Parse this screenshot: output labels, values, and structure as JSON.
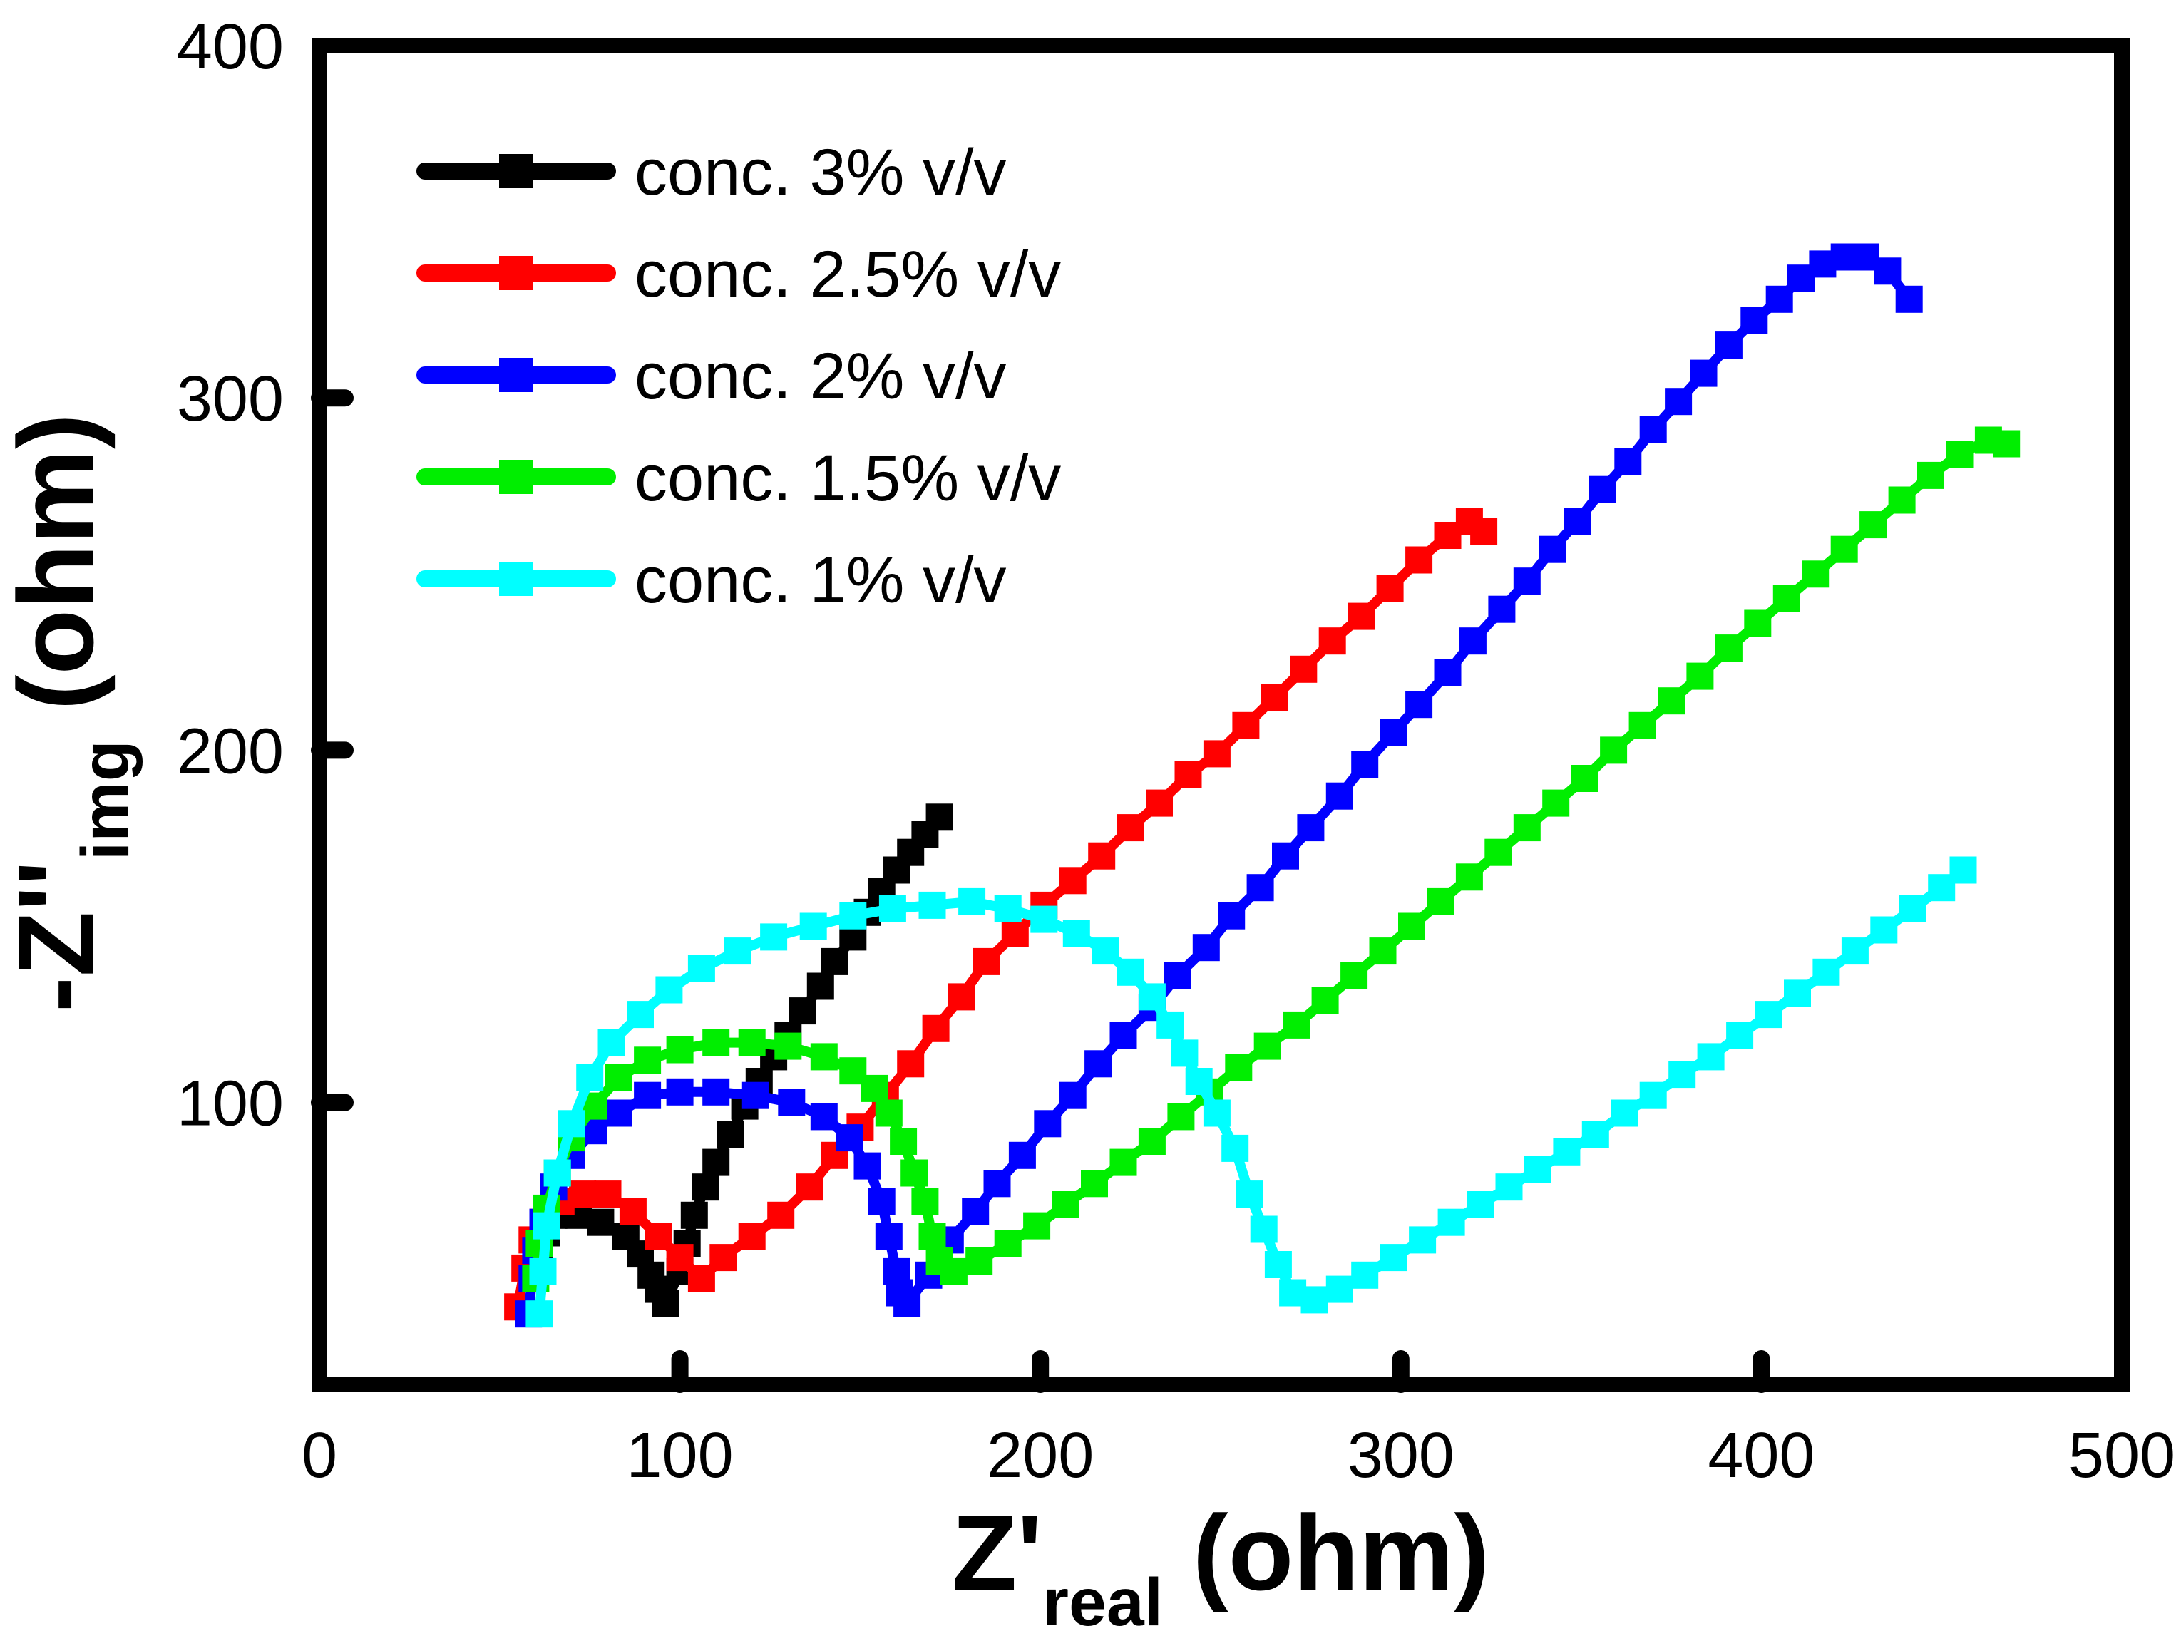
{
  "chart_data": {
    "type": "scatter",
    "title": "",
    "xlabel": {
      "main": "Z'",
      "sub": "real",
      "unit": " (ohm)"
    },
    "ylabel": {
      "prefix": "-",
      "main": "Z''",
      "sub": "img",
      "unit": " (ohm)"
    },
    "xlim": [
      0,
      500
    ],
    "ylim": [
      20,
      400
    ],
    "xticks": [
      0,
      100,
      200,
      300,
      400,
      500
    ],
    "yticks": [
      100,
      200,
      300,
      400
    ],
    "grid": false,
    "legend_position": "top-left",
    "series": [
      {
        "name": "conc. 3% v/v",
        "color": "#000000",
        "points": [
          [
            61,
            54
          ],
          [
            63,
            63
          ],
          [
            65,
            68
          ],
          [
            67,
            70
          ],
          [
            72,
            68
          ],
          [
            78,
            66
          ],
          [
            85,
            62
          ],
          [
            89,
            57
          ],
          [
            92,
            51
          ],
          [
            94,
            47
          ],
          [
            96,
            43
          ],
          [
            100,
            52
          ],
          [
            102,
            60
          ],
          [
            104,
            68
          ],
          [
            107,
            76
          ],
          [
            110,
            83
          ],
          [
            114,
            91
          ],
          [
            118,
            99
          ],
          [
            122,
            106
          ],
          [
            126,
            113
          ],
          [
            130,
            119
          ],
          [
            134,
            126
          ],
          [
            139,
            133
          ],
          [
            143,
            140
          ],
          [
            148,
            147
          ],
          [
            152,
            154
          ],
          [
            156,
            160
          ],
          [
            160,
            166
          ],
          [
            164,
            171
          ],
          [
            168,
            176
          ],
          [
            172,
            181
          ]
        ]
      },
      {
        "name": "conc. 2.5% v/v",
        "color": "#ff0000",
        "points": [
          [
            55,
            42
          ],
          [
            57,
            53
          ],
          [
            59,
            61
          ],
          [
            62,
            66
          ],
          [
            67,
            72
          ],
          [
            73,
            74
          ],
          [
            80,
            74
          ],
          [
            87,
            69
          ],
          [
            94,
            62
          ],
          [
            100,
            56
          ],
          [
            106,
            50
          ],
          [
            112,
            56
          ],
          [
            120,
            62
          ],
          [
            128,
            68
          ],
          [
            136,
            76
          ],
          [
            143,
            85
          ],
          [
            150,
            93
          ],
          [
            157,
            102
          ],
          [
            164,
            111
          ],
          [
            171,
            121
          ],
          [
            178,
            130
          ],
          [
            185,
            140
          ],
          [
            193,
            148
          ],
          [
            201,
            156
          ],
          [
            209,
            163
          ],
          [
            217,
            170
          ],
          [
            225,
            178
          ],
          [
            233,
            185
          ],
          [
            241,
            193
          ],
          [
            249,
            199
          ],
          [
            257,
            207
          ],
          [
            265,
            215
          ],
          [
            273,
            223
          ],
          [
            281,
            231
          ],
          [
            289,
            238
          ],
          [
            297,
            246
          ],
          [
            305,
            254
          ],
          [
            313,
            261
          ],
          [
            319,
            265
          ],
          [
            323,
            262
          ]
        ]
      },
      {
        "name": "conc. 2% v/v",
        "color": "#0000ff",
        "points": [
          [
            58,
            40
          ],
          [
            59,
            50
          ],
          [
            60,
            58
          ],
          [
            62,
            66
          ],
          [
            65,
            76
          ],
          [
            70,
            85
          ],
          [
            76,
            92
          ],
          [
            83,
            97
          ],
          [
            91,
            102
          ],
          [
            100,
            103
          ],
          [
            110,
            103
          ],
          [
            121,
            102
          ],
          [
            131,
            100
          ],
          [
            140,
            96
          ],
          [
            147,
            90
          ],
          [
            152,
            82
          ],
          [
            156,
            72
          ],
          [
            158,
            62
          ],
          [
            160,
            52
          ],
          [
            161,
            46
          ],
          [
            163,
            43
          ],
          [
            169,
            51
          ],
          [
            175,
            61
          ],
          [
            182,
            69
          ],
          [
            188,
            77
          ],
          [
            195,
            85
          ],
          [
            202,
            94
          ],
          [
            209,
            102
          ],
          [
            216,
            111
          ],
          [
            223,
            119
          ],
          [
            231,
            127
          ],
          [
            238,
            136
          ],
          [
            246,
            144
          ],
          [
            253,
            153
          ],
          [
            261,
            161
          ],
          [
            268,
            170
          ],
          [
            275,
            178
          ],
          [
            283,
            187
          ],
          [
            290,
            196
          ],
          [
            298,
            205
          ],
          [
            305,
            213
          ],
          [
            313,
            222
          ],
          [
            320,
            231
          ],
          [
            328,
            240
          ],
          [
            335,
            248
          ],
          [
            342,
            257
          ],
          [
            349,
            265
          ],
          [
            356,
            274
          ],
          [
            363,
            282
          ],
          [
            370,
            291
          ],
          [
            377,
            299
          ],
          [
            384,
            307
          ],
          [
            391,
            315
          ],
          [
            398,
            322
          ],
          [
            405,
            328
          ],
          [
            411,
            334
          ],
          [
            417,
            338
          ],
          [
            423,
            340
          ],
          [
            429,
            340
          ],
          [
            435,
            336
          ],
          [
            441,
            328
          ]
        ]
      },
      {
        "name": "conc. 1.5% v/v",
        "color": "#00ee00",
        "points": [
          [
            60,
            50
          ],
          [
            61,
            60
          ],
          [
            63,
            70
          ],
          [
            66,
            80
          ],
          [
            70,
            90
          ],
          [
            76,
            99
          ],
          [
            83,
            107
          ],
          [
            91,
            112
          ],
          [
            100,
            115
          ],
          [
            110,
            117
          ],
          [
            120,
            117
          ],
          [
            130,
            116
          ],
          [
            140,
            113
          ],
          [
            148,
            109
          ],
          [
            154,
            104
          ],
          [
            158,
            97
          ],
          [
            162,
            89
          ],
          [
            165,
            80
          ],
          [
            168,
            72
          ],
          [
            170,
            62
          ],
          [
            172,
            55
          ],
          [
            176,
            52
          ],
          [
            183,
            55
          ],
          [
            191,
            60
          ],
          [
            199,
            65
          ],
          [
            207,
            71
          ],
          [
            215,
            77
          ],
          [
            223,
            83
          ],
          [
            231,
            89
          ],
          [
            239,
            96
          ],
          [
            247,
            103
          ],
          [
            255,
            110
          ],
          [
            263,
            116
          ],
          [
            271,
            122
          ],
          [
            279,
            129
          ],
          [
            287,
            136
          ],
          [
            295,
            143
          ],
          [
            303,
            150
          ],
          [
            311,
            157
          ],
          [
            319,
            164
          ],
          [
            327,
            171
          ],
          [
            335,
            178
          ],
          [
            343,
            185
          ],
          [
            351,
            192
          ],
          [
            359,
            200
          ],
          [
            367,
            207
          ],
          [
            375,
            214
          ],
          [
            383,
            221
          ],
          [
            391,
            229
          ],
          [
            399,
            236
          ],
          [
            407,
            243
          ],
          [
            415,
            250
          ],
          [
            423,
            257
          ],
          [
            431,
            264
          ],
          [
            439,
            271
          ],
          [
            447,
            278
          ],
          [
            455,
            284
          ],
          [
            463,
            288
          ],
          [
            468,
            287
          ]
        ]
      },
      {
        "name": "conc. 1% v/v",
        "color": "#00ffff",
        "points": [
          [
            61,
            40
          ],
          [
            62,
            52
          ],
          [
            63,
            65
          ],
          [
            66,
            80
          ],
          [
            70,
            94
          ],
          [
            75,
            107
          ],
          [
            81,
            117
          ],
          [
            89,
            125
          ],
          [
            97,
            132
          ],
          [
            106,
            138
          ],
          [
            116,
            143
          ],
          [
            126,
            147
          ],
          [
            137,
            150
          ],
          [
            148,
            153
          ],
          [
            159,
            155
          ],
          [
            170,
            156
          ],
          [
            181,
            157
          ],
          [
            191,
            155
          ],
          [
            201,
            152
          ],
          [
            210,
            148
          ],
          [
            218,
            143
          ],
          [
            225,
            137
          ],
          [
            231,
            130
          ],
          [
            236,
            122
          ],
          [
            240,
            114
          ],
          [
            244,
            106
          ],
          [
            249,
            97
          ],
          [
            254,
            87
          ],
          [
            258,
            74
          ],
          [
            262,
            64
          ],
          [
            266,
            54
          ],
          [
            270,
            46
          ],
          [
            276,
            44
          ],
          [
            283,
            47
          ],
          [
            290,
            51
          ],
          [
            298,
            56
          ],
          [
            306,
            61
          ],
          [
            314,
            66
          ],
          [
            322,
            71
          ],
          [
            330,
            76
          ],
          [
            338,
            81
          ],
          [
            346,
            86
          ],
          [
            354,
            91
          ],
          [
            362,
            97
          ],
          [
            370,
            102
          ],
          [
            378,
            108
          ],
          [
            386,
            113
          ],
          [
            394,
            119
          ],
          [
            402,
            125
          ],
          [
            410,
            131
          ],
          [
            418,
            137
          ],
          [
            426,
            143
          ],
          [
            434,
            149
          ],
          [
            442,
            155
          ],
          [
            450,
            161
          ],
          [
            456,
            166
          ]
        ]
      }
    ]
  }
}
